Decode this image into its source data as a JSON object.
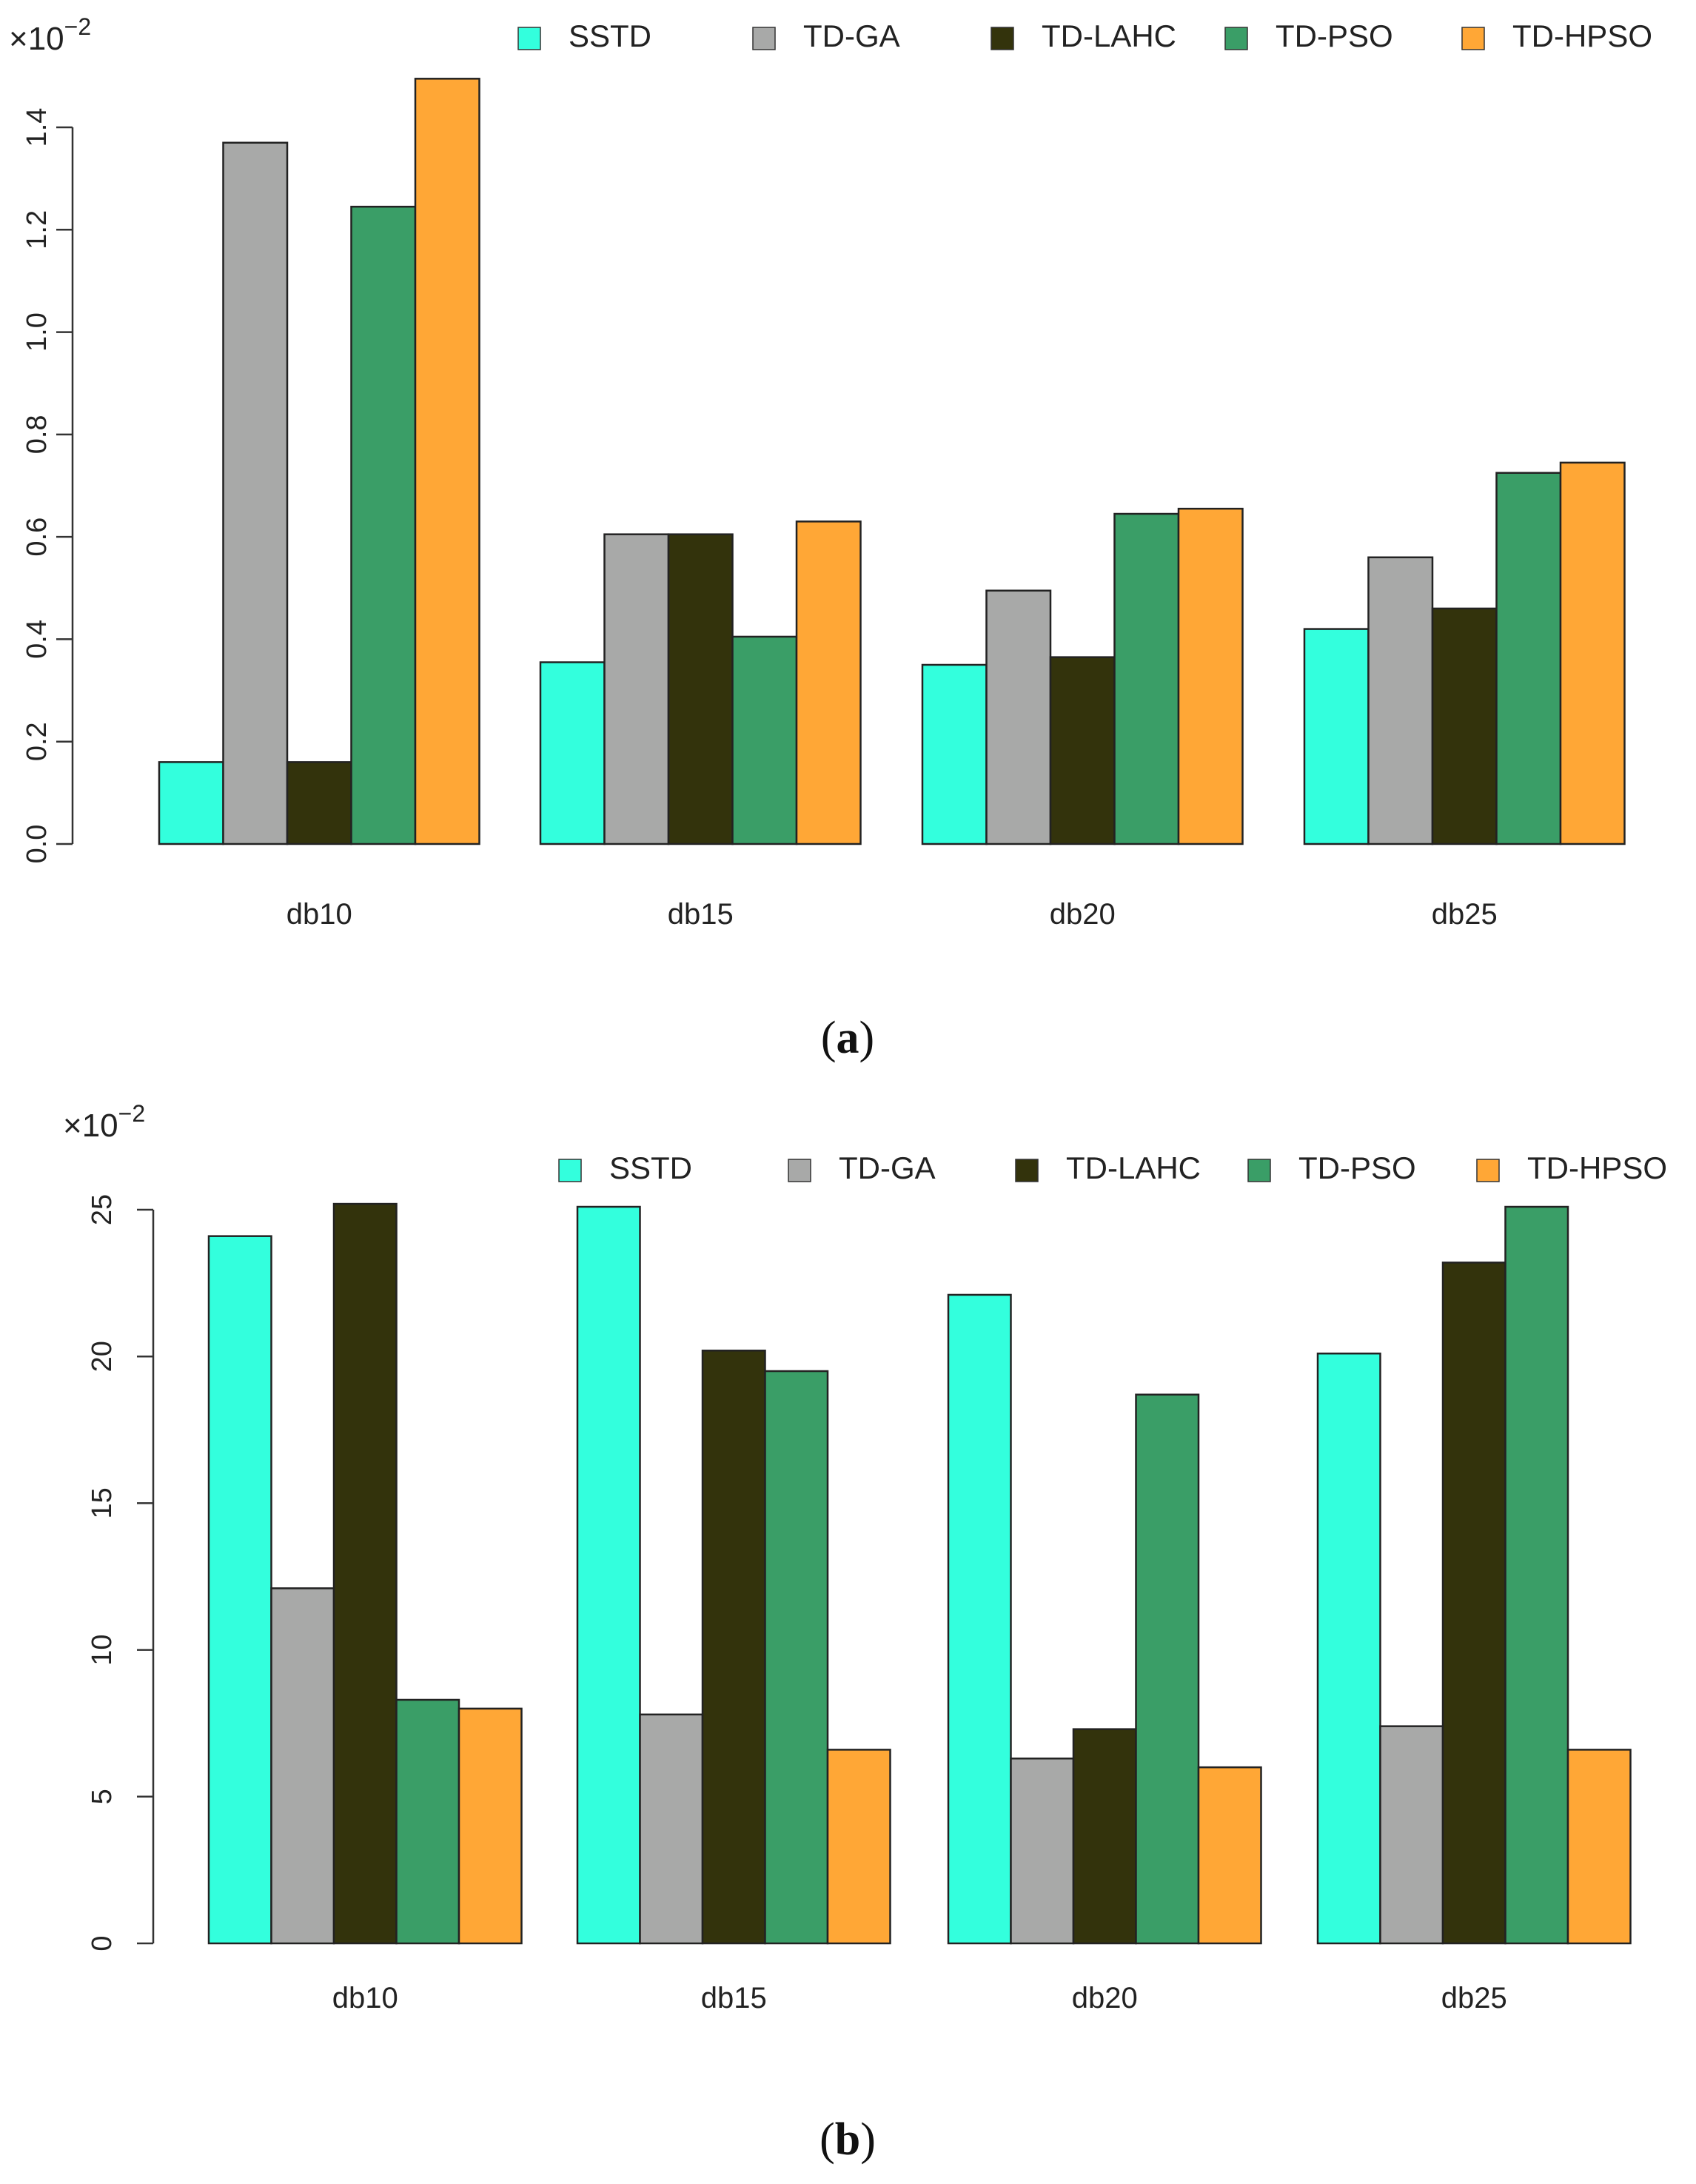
{
  "series_names": [
    "SSTD",
    "TD-GA",
    "TD-LAHC",
    "TD-PSO",
    "TD-HPSO"
  ],
  "colors": [
    "#33FFDD",
    "#A8A9A8",
    "#33330C",
    "#3A9E67",
    "#FFA736"
  ],
  "scale_base": "×10",
  "scale_exp": "−2",
  "chart_data": [
    {
      "type": "bar",
      "panel_label": "a",
      "categories": [
        "db10",
        "db15",
        "db20",
        "db25"
      ],
      "series": [
        {
          "name": "SSTD",
          "values": [
            0.16,
            0.355,
            0.35,
            0.42
          ]
        },
        {
          "name": "TD-GA",
          "values": [
            1.37,
            0.605,
            0.495,
            0.56
          ]
        },
        {
          "name": "TD-LAHC",
          "values": [
            0.16,
            0.605,
            0.365,
            0.46
          ]
        },
        {
          "name": "TD-PSO",
          "values": [
            1.245,
            0.405,
            0.645,
            0.725
          ]
        },
        {
          "name": "TD-HPSO",
          "values": [
            1.495,
            0.63,
            0.655,
            0.745
          ]
        }
      ],
      "yticks": [
        "0.0",
        "0.2",
        "0.4",
        "0.6",
        "0.8",
        "1.0",
        "1.2",
        "1.4"
      ],
      "ylim": [
        0,
        1.4
      ],
      "title": "",
      "xlabel": "",
      "ylabel": ""
    },
    {
      "type": "bar",
      "panel_label": "b",
      "categories": [
        "db10",
        "db15",
        "db20",
        "db25"
      ],
      "series": [
        {
          "name": "SSTD",
          "values": [
            24.1,
            25.1,
            22.1,
            20.1
          ]
        },
        {
          "name": "TD-GA",
          "values": [
            12.1,
            7.8,
            6.3,
            7.4
          ]
        },
        {
          "name": "TD-LAHC",
          "values": [
            25.2,
            20.2,
            7.3,
            23.2
          ]
        },
        {
          "name": "TD-PSO",
          "values": [
            8.3,
            19.5,
            18.7,
            25.1
          ]
        },
        {
          "name": "TD-HPSO",
          "values": [
            8.0,
            6.6,
            6.0,
            6.6
          ]
        }
      ],
      "yticks": [
        "0",
        "5",
        "10",
        "15",
        "20",
        "25"
      ],
      "ylim": [
        0,
        25
      ],
      "title": "",
      "xlabel": "",
      "ylabel": ""
    }
  ]
}
